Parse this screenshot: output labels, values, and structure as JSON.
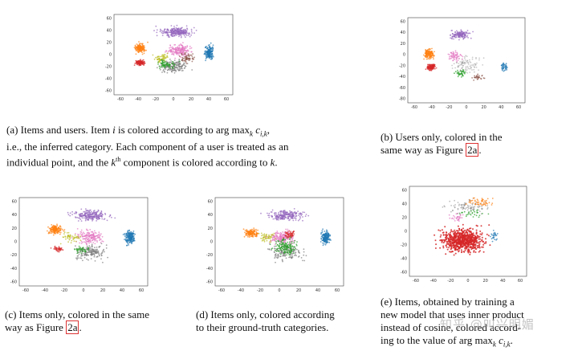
{
  "figures": [
    {
      "id": "a",
      "caption": {
        "l1": "(a) Items and users. Item ",
        "i": "i",
        "l1b": " is colored according to ",
        "argmax": "arg max",
        "sub": "k",
        "c": " c",
        "csub": "i,k",
        "l1c": ",",
        "l2": "i.e., the inferred category. Each component of a user is treated as an",
        "l3a": "individual point, and the ",
        "kth": "k",
        "th": "th",
        "l3b": " component is colored according to ",
        "k": "k",
        "l3c": "."
      }
    },
    {
      "id": "b",
      "caption": {
        "l1": "(b) Users only, colored in the",
        "l2": "same way as Figure ",
        "ref": "2a",
        "end": "."
      }
    },
    {
      "id": "c",
      "caption": {
        "l1": "(c) Items only, colored in the same",
        "l2": "way as Figure ",
        "ref": "2a",
        "end": "."
      }
    },
    {
      "id": "d",
      "caption": {
        "l1": "(d) Items only, colored according",
        "l2": "to their ground-truth categories."
      }
    },
    {
      "id": "e",
      "caption": {
        "l1": "(e) Items, obtained by training a",
        "l2": "new model that uses inner product",
        "l3": "instead of cosine, colored accord-",
        "l4a": "ing to the value of ",
        "argmax": "arg max",
        "sub": "k",
        "c": " c",
        "csub": "i,k",
        "end": "."
      }
    }
  ],
  "axes": {
    "a": {
      "xticks": [
        "-60",
        "-40",
        "-20",
        "0",
        "20",
        "40",
        "60"
      ],
      "yticks": [
        "60",
        "40",
        "20",
        "0",
        "-20",
        "-40",
        "-60"
      ]
    },
    "b": {
      "xticks": [
        "-60",
        "-40",
        "-20",
        "0",
        "20",
        "40",
        "60"
      ],
      "yticks": [
        "60",
        "40",
        "20",
        "0",
        "-20",
        "-40",
        "-60",
        "-80"
      ]
    },
    "c": {
      "xticks": [
        "-60",
        "-40",
        "-20",
        "0",
        "20",
        "40",
        "60"
      ],
      "yticks": [
        "60",
        "40",
        "20",
        "0",
        "-20",
        "-40",
        "-60"
      ]
    },
    "d": {
      "xticks": [
        "-60",
        "-40",
        "-20",
        "0",
        "20",
        "40",
        "60"
      ],
      "yticks": [
        "60",
        "40",
        "20",
        "0",
        "-20",
        "-40",
        "-60"
      ]
    },
    "e": {
      "xticks": [
        "-60",
        "-40",
        "-20",
        "0",
        "20",
        "40",
        "60"
      ],
      "yticks": [
        "60",
        "40",
        "20",
        "0",
        "-20",
        "-40",
        "-60"
      ]
    }
  },
  "colors": {
    "purple": "#9467bd",
    "orange": "#ff7f0e",
    "red": "#d62728",
    "green": "#2ca02c",
    "blue": "#1f77b4",
    "pink": "#e377c2",
    "gray": "#7f7f7f",
    "olive": "#bcbd22",
    "brown": "#8c564b"
  },
  "watermark": "知乎 @叫兴明媚"
}
